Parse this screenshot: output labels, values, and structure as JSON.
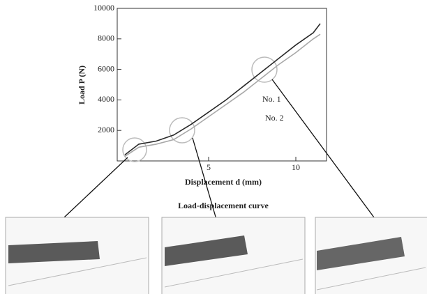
{
  "chart_data": {
    "type": "line",
    "caption": "Load-displacement curve",
    "x_label": "Displacement d (mm)",
    "y_label": "Load P (N)",
    "x": [
      0.2,
      1,
      2,
      3,
      4,
      5,
      6,
      7,
      8,
      9,
      10,
      11,
      11.4
    ],
    "series": [
      {
        "name": "No. 1",
        "color": "#2a2a2a",
        "values": [
          400,
          1100,
          1300,
          1700,
          2400,
          3200,
          4000,
          4900,
          5800,
          6700,
          7600,
          8400,
          9000
        ]
      },
      {
        "name": "No. 2",
        "color": "#a8a8a8",
        "values": [
          300,
          900,
          1100,
          1400,
          2100,
          2900,
          3700,
          4500,
          5400,
          6300,
          7100,
          8000,
          8300
        ]
      }
    ],
    "xlim": [
      0,
      12
    ],
    "xticks": [
      5,
      10
    ],
    "ylim": [
      0,
      10000
    ],
    "yticks": [
      2000,
      4000,
      6000,
      8000,
      10000
    ]
  }
}
